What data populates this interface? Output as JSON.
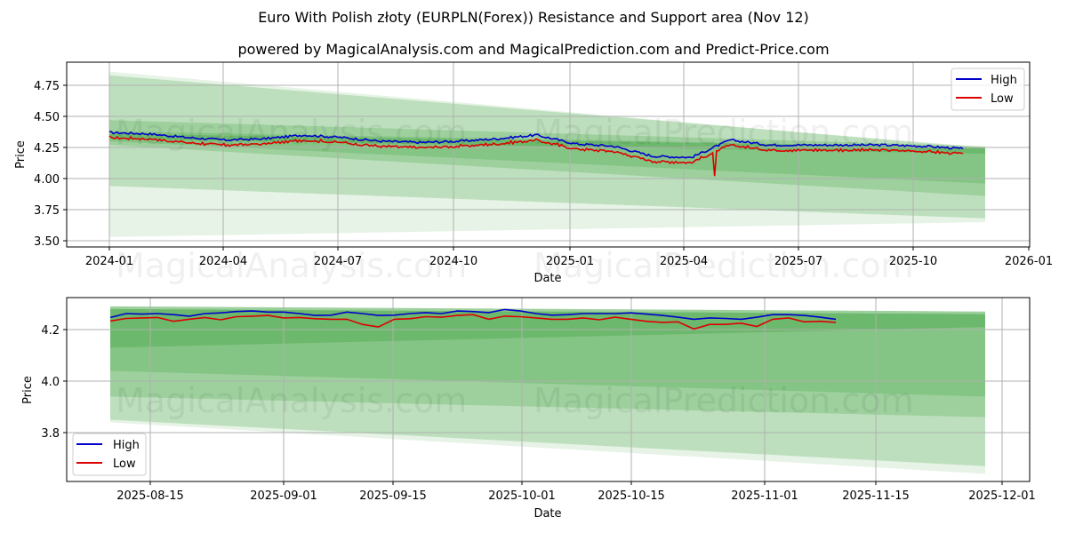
{
  "header": {
    "title": "Euro With Polish złoty (EURPLN(Forex)) Resistance and Support area (Nov 12)",
    "subtitle": "powered by MagicalAnalysis.com and MagicalPrediction.com and Predict-Price.com"
  },
  "watermarks": [
    "MagicalAnalysis.com",
    "MagicalPrediction.com"
  ],
  "colors": {
    "high": "#0000cc",
    "low": "#dd0000",
    "band": "#2e9a2e",
    "grid": "#b0b0b0"
  },
  "chart_data": [
    {
      "type": "line",
      "title": "Full history with resistance/support bands",
      "xlabel": "Date",
      "ylabel": "Price",
      "ylim": [
        3.47,
        4.92
      ],
      "yticks": [
        "4.75",
        "4.50",
        "4.25",
        "4.00",
        "3.75",
        "3.50"
      ],
      "xticks": [
        "2024-01",
        "2024-04",
        "2024-07",
        "2024-10",
        "2025-01",
        "2025-04",
        "2025-07",
        "2025-10",
        "2026-01"
      ],
      "grid": true,
      "legend": {
        "position": "upper right",
        "entries": [
          "High",
          "Low"
        ]
      },
      "x": [
        "2024-01",
        "2024-02",
        "2024-03",
        "2024-04",
        "2024-05",
        "2024-06",
        "2024-07",
        "2024-08",
        "2024-09",
        "2024-10",
        "2024-11",
        "2024-12",
        "2025-01",
        "2025-02",
        "2025-03",
        "2025-04",
        "2025-05",
        "2025-06",
        "2025-07",
        "2025-08",
        "2025-09",
        "2025-10",
        "2025-11"
      ],
      "series": [
        {
          "name": "High",
          "values": [
            4.37,
            4.36,
            4.33,
            4.31,
            4.32,
            4.35,
            4.33,
            4.3,
            4.29,
            4.3,
            4.32,
            4.35,
            4.28,
            4.26,
            4.18,
            4.17,
            4.31,
            4.27,
            4.27,
            4.27,
            4.27,
            4.26,
            4.24
          ]
        },
        {
          "name": "Low",
          "values": [
            4.33,
            4.33,
            4.3,
            4.28,
            4.29,
            4.31,
            4.3,
            4.27,
            4.26,
            4.27,
            4.28,
            4.31,
            4.25,
            4.22,
            4.14,
            4.15,
            4.02,
            4.23,
            4.24,
            4.24,
            4.24,
            4.22,
            4.22
          ]
        }
      ],
      "bands": [
        {
          "name": "outer",
          "start": [
            4.86,
            3.53
          ],
          "end": [
            4.24,
            3.65
          ]
        },
        {
          "name": "wide",
          "start": [
            4.83,
            3.94
          ],
          "end": [
            4.25,
            3.68
          ]
        },
        {
          "name": "mid",
          "start": [
            4.47,
            4.27
          ],
          "end": [
            4.26,
            3.86
          ]
        },
        {
          "name": "inner",
          "start": [
            4.38,
            4.3
          ],
          "end": [
            4.25,
            3.96
          ]
        },
        {
          "name": "core",
          "start": [
            4.36,
            4.32
          ],
          "end": [
            4.25,
            4.2
          ]
        }
      ]
    },
    {
      "type": "line",
      "title": "Zoomed recent window with resistance/support bands",
      "xlabel": "Date",
      "ylabel": "Price",
      "ylim": [
        3.62,
        4.33
      ],
      "yticks": [
        "4.2",
        "4.0",
        "3.8"
      ],
      "xticks": [
        "2025-08-15",
        "2025-09-01",
        "2025-09-15",
        "2025-10-01",
        "2025-10-15",
        "2025-11-01",
        "2025-11-15",
        "2025-12-01"
      ],
      "grid": true,
      "legend": {
        "position": "lower left",
        "entries": [
          "High",
          "Low"
        ]
      },
      "x": [
        "08-10",
        "08-12",
        "08-14",
        "08-16",
        "08-18",
        "08-20",
        "08-22",
        "08-24",
        "08-26",
        "08-28",
        "08-30",
        "09-01",
        "09-03",
        "09-05",
        "09-07",
        "09-09",
        "09-11",
        "09-13",
        "09-15",
        "09-17",
        "09-19",
        "09-21",
        "09-23",
        "09-25",
        "09-27",
        "09-29",
        "10-01",
        "10-03",
        "10-05",
        "10-07",
        "10-09",
        "10-11",
        "10-13",
        "10-15",
        "10-17",
        "10-19",
        "10-21",
        "10-23",
        "10-25",
        "10-27",
        "10-29",
        "10-31",
        "11-02",
        "11-04",
        "11-06",
        "11-08",
        "11-10"
      ],
      "series": [
        {
          "name": "High",
          "values": [
            4.247,
            4.262,
            4.26,
            4.262,
            4.258,
            4.252,
            4.262,
            4.265,
            4.27,
            4.272,
            4.268,
            4.268,
            4.262,
            4.255,
            4.256,
            4.268,
            4.262,
            4.255,
            4.256,
            4.262,
            4.266,
            4.262,
            4.272,
            4.27,
            4.266,
            4.278,
            4.272,
            4.262,
            4.256,
            4.258,
            4.262,
            4.262,
            4.262,
            4.265,
            4.26,
            4.255,
            4.248,
            4.24,
            4.245,
            4.243,
            4.24,
            4.248,
            4.258,
            4.258,
            4.255,
            4.248,
            4.24
          ]
        },
        {
          "name": "Low",
          "values": [
            4.233,
            4.243,
            4.245,
            4.247,
            4.232,
            4.24,
            4.247,
            4.238,
            4.25,
            4.252,
            4.255,
            4.245,
            4.247,
            4.242,
            4.24,
            4.24,
            4.22,
            4.21,
            4.24,
            4.242,
            4.25,
            4.248,
            4.255,
            4.258,
            4.24,
            4.252,
            4.25,
            4.245,
            4.24,
            4.24,
            4.245,
            4.238,
            4.248,
            4.24,
            4.232,
            4.228,
            4.23,
            4.202,
            4.22,
            4.22,
            4.225,
            4.212,
            4.24,
            4.245,
            4.23,
            4.232,
            4.228
          ]
        }
      ],
      "bands": [
        {
          "name": "outer",
          "start": [
            4.29,
            3.84
          ],
          "end": [
            4.27,
            3.64
          ]
        },
        {
          "name": "wide",
          "start": [
            4.29,
            3.85
          ],
          "end": [
            4.27,
            3.67
          ]
        },
        {
          "name": "mid",
          "start": [
            4.29,
            3.94
          ],
          "end": [
            4.27,
            3.86
          ]
        },
        {
          "name": "inner",
          "start": [
            4.28,
            4.04
          ],
          "end": [
            4.26,
            3.94
          ]
        },
        {
          "name": "core",
          "start": [
            4.28,
            4.13
          ],
          "end": [
            4.26,
            4.21
          ]
        }
      ]
    }
  ]
}
